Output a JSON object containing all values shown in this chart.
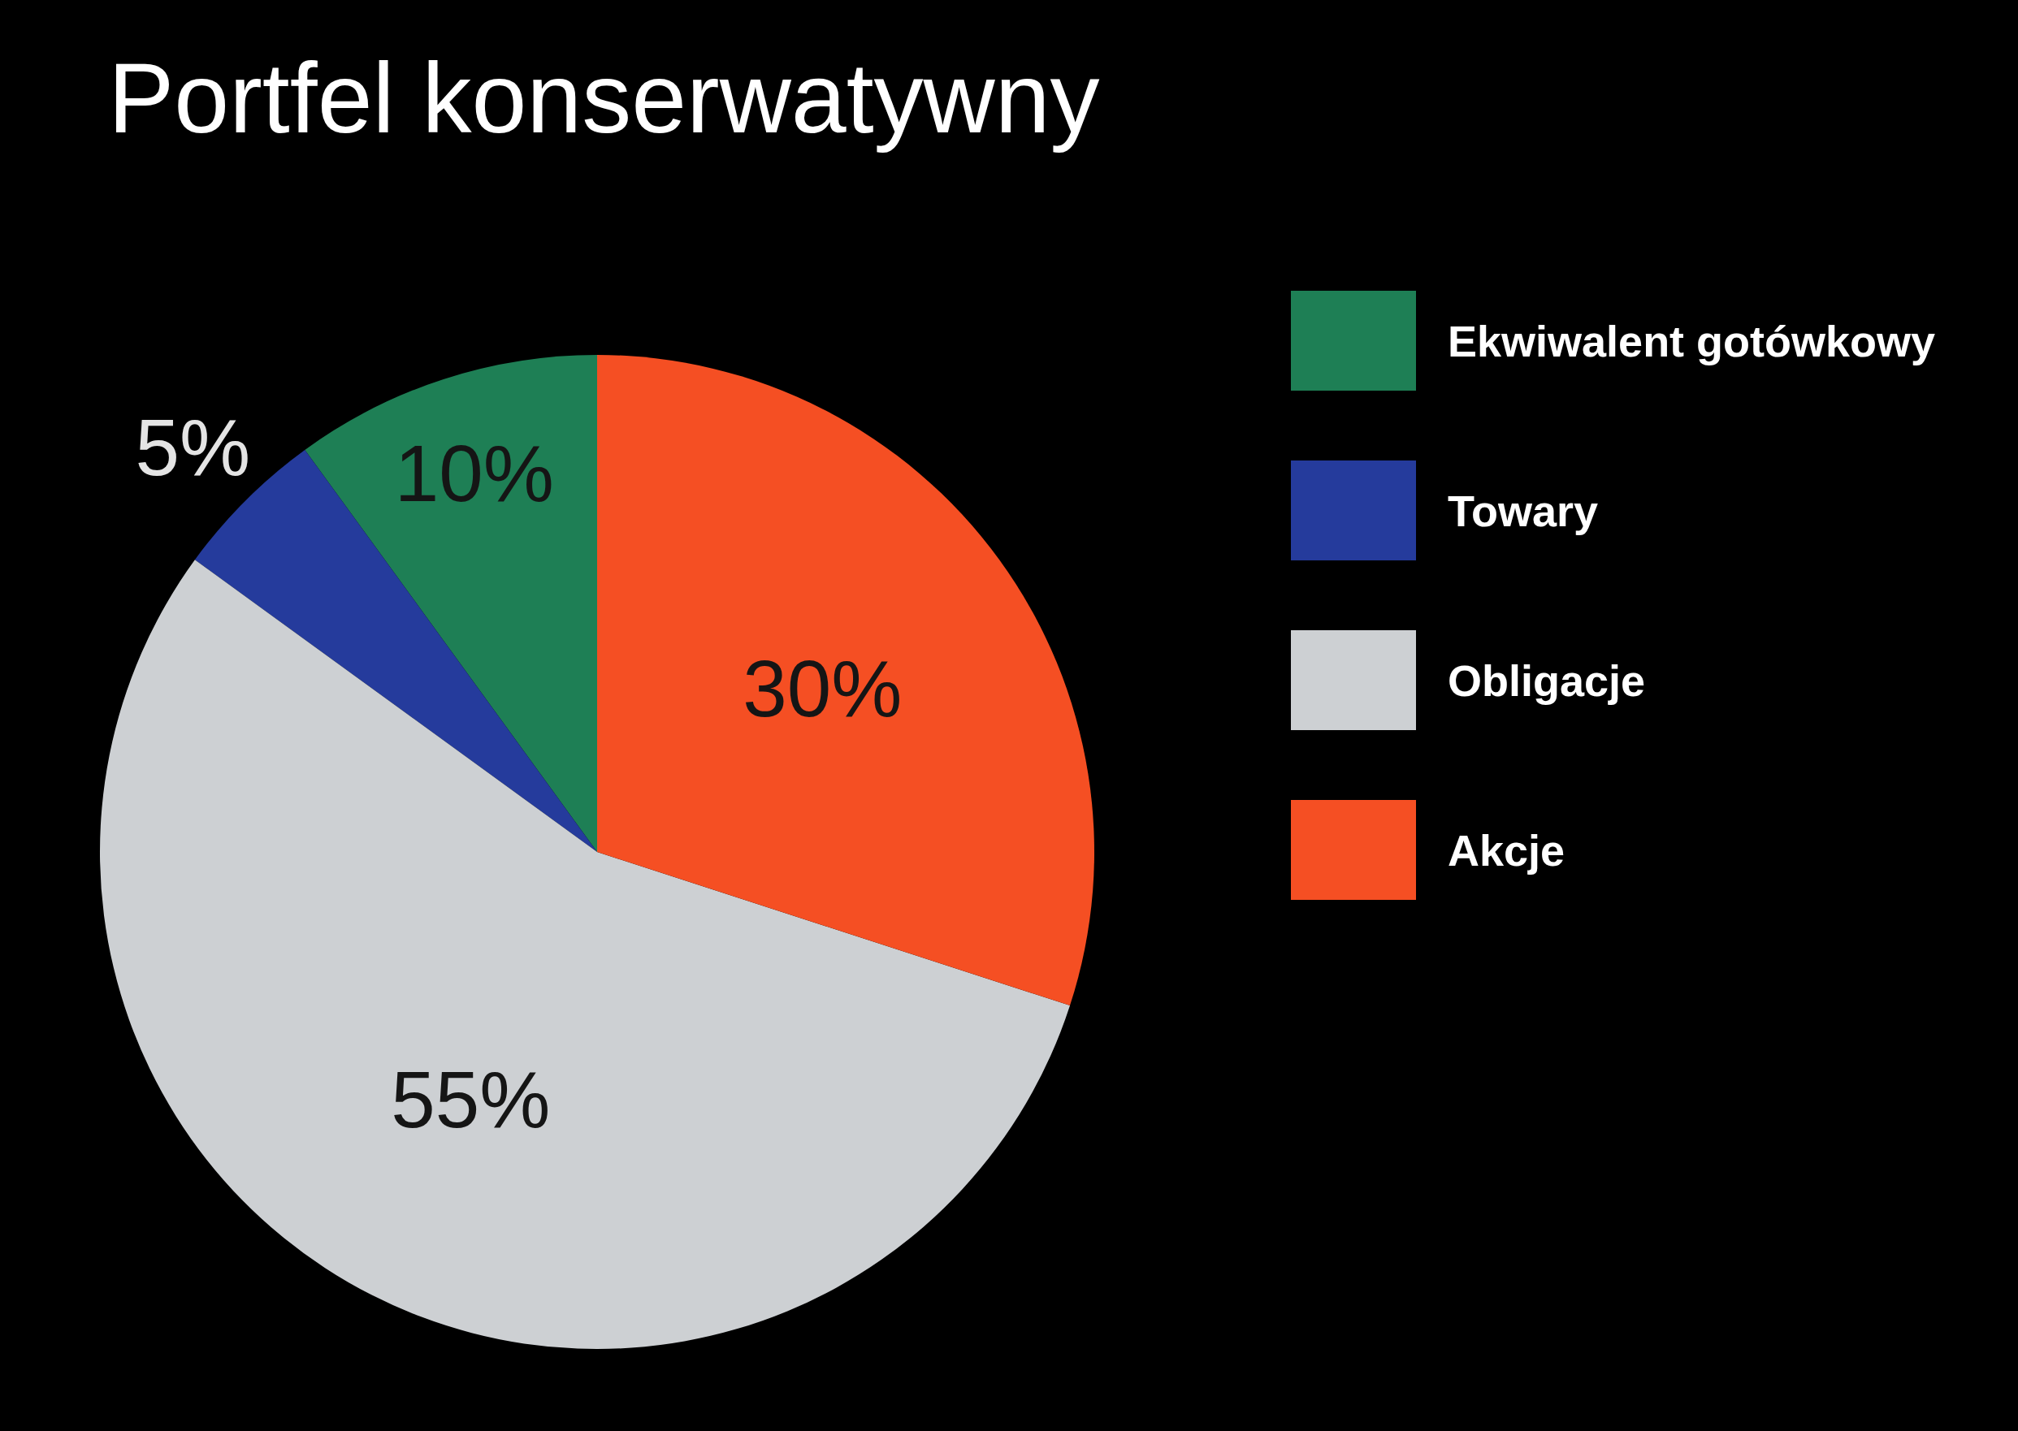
{
  "chart_data": {
    "type": "pie",
    "title": "Portfel konserwatywny",
    "categories": [
      "Ekwiwalent gotówkowy",
      "Towary",
      "Obligacje",
      "Akcje"
    ],
    "values": [
      10,
      5,
      55,
      30
    ],
    "colors": [
      "#1e7f55",
      "#253b9c",
      "#cdd0d3",
      "#f54f23"
    ],
    "value_labels": [
      "10%",
      "5%",
      "55%",
      "30%"
    ],
    "legend": "right"
  }
}
